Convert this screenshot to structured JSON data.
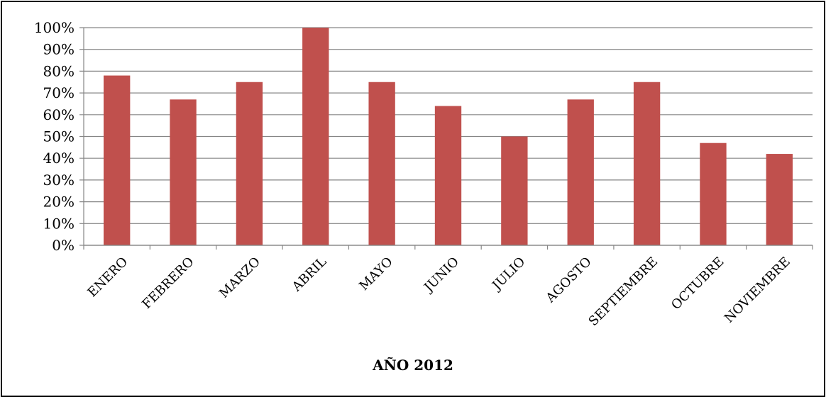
{
  "chart_data": {
    "type": "bar",
    "title": "",
    "xlabel": "AÑO 2012",
    "ylabel": "",
    "categories": [
      "ENERO",
      "FEBRERO",
      "MARZO",
      "ABRIL",
      "MAYO",
      "JUNIO",
      "JULIO",
      "AGOSTO",
      "SEPTIEMBRE",
      "OCTUBRE",
      "NOVIEMBRE"
    ],
    "series": [
      {
        "values": [
          78,
          67,
          75,
          100,
          75,
          64,
          50,
          67,
          75,
          47,
          42
        ]
      }
    ],
    "ylim": [
      0,
      100
    ],
    "yticks": [
      "0%",
      "10%",
      "20%",
      "30%",
      "40%",
      "50%",
      "60%",
      "70%",
      "80%",
      "90%",
      "100%"
    ],
    "grid": true,
    "legend": "none",
    "bar_color": "#C0504D"
  }
}
